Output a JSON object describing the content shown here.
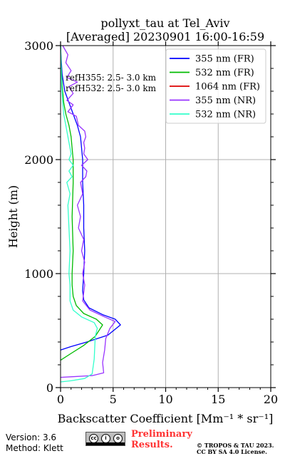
{
  "chart_data": {
    "type": "line",
    "title_line1": "pollyxt_tau at Tel_Aviv",
    "title_line2": "[Averaged] 20230901 16:00-16:59",
    "xlabel": "Backscatter Coefficient [Mm⁻¹ * sr⁻¹]",
    "ylabel": "Height (m)",
    "xlim": [
      0,
      20
    ],
    "ylim": [
      0,
      3000
    ],
    "xticks": [
      0,
      5,
      10,
      15,
      20
    ],
    "yticks": [
      0,
      1000,
      2000,
      3000
    ],
    "grid": true,
    "legend_placement": "top-right",
    "annotations": [
      "refH355:  2.5- 3.0 km",
      "refH532:  2.5- 3.0 km"
    ],
    "series": [
      {
        "name": "355 nm (FR)",
        "color": "#0000ff",
        "points": [
          [
            0,
            330
          ],
          [
            1.0,
            360
          ],
          [
            2.5,
            400
          ],
          [
            4.5,
            460
          ],
          [
            5.7,
            550
          ],
          [
            5.2,
            600
          ],
          [
            4.0,
            640
          ],
          [
            2.7,
            700
          ],
          [
            2.2,
            770
          ],
          [
            2.1,
            850
          ],
          [
            2.2,
            1000
          ],
          [
            2.3,
            1200
          ],
          [
            2.2,
            1400
          ],
          [
            2.2,
            1600
          ],
          [
            2.1,
            1800
          ],
          [
            2.1,
            2000
          ],
          [
            2.0,
            2100
          ],
          [
            1.9,
            2200
          ],
          [
            1.6,
            2300
          ],
          [
            1.2,
            2400
          ],
          [
            0.8,
            2500
          ],
          [
            0.4,
            2600
          ],
          [
            0.15,
            2750
          ],
          [
            0.05,
            2900
          ],
          [
            0.0,
            3000
          ]
        ]
      },
      {
        "name": "532 nm (FR)",
        "color": "#00bb00",
        "points": [
          [
            0,
            240
          ],
          [
            1.0,
            300
          ],
          [
            2.2,
            370
          ],
          [
            3.3,
            450
          ],
          [
            4.0,
            550
          ],
          [
            3.4,
            600
          ],
          [
            2.2,
            650
          ],
          [
            1.5,
            720
          ],
          [
            1.2,
            800
          ],
          [
            1.1,
            900
          ],
          [
            1.1,
            1000
          ],
          [
            1.2,
            1200
          ],
          [
            1.1,
            1500
          ],
          [
            1.2,
            1800
          ],
          [
            1.2,
            2000
          ],
          [
            1.1,
            2100
          ],
          [
            1.0,
            2200
          ],
          [
            0.8,
            2300
          ],
          [
            0.5,
            2400
          ],
          [
            0.3,
            2500
          ],
          [
            0.15,
            2650
          ],
          [
            0.05,
            2850
          ],
          [
            0.0,
            3000
          ]
        ]
      },
      {
        "name": "1064 nm (FR)",
        "color": "#dd0000",
        "points": []
      },
      {
        "name": "355 nm (NR)",
        "color": "#9933ff",
        "points": [
          [
            0,
            90
          ],
          [
            1.0,
            95
          ],
          [
            3.0,
            105
          ],
          [
            4.1,
            130
          ],
          [
            4.0,
            220
          ],
          [
            4.2,
            330
          ],
          [
            4.3,
            430
          ],
          [
            4.7,
            520
          ],
          [
            5.2,
            580
          ],
          [
            4.2,
            620
          ],
          [
            2.8,
            680
          ],
          [
            2.1,
            760
          ],
          [
            2.3,
            900
          ],
          [
            2.1,
            1000
          ],
          [
            2.3,
            1100
          ],
          [
            2.0,
            1200
          ],
          [
            2.2,
            1300
          ],
          [
            1.7,
            1400
          ],
          [
            1.9,
            1500
          ],
          [
            1.6,
            1600
          ],
          [
            2.1,
            1700
          ],
          [
            1.9,
            1800
          ],
          [
            2.4,
            1850
          ],
          [
            2.5,
            1900
          ],
          [
            2.0,
            1950
          ],
          [
            2.6,
            2000
          ],
          [
            2.2,
            2050
          ],
          [
            2.3,
            2100
          ],
          [
            2.2,
            2150
          ],
          [
            2.4,
            2200
          ],
          [
            2.3,
            2250
          ],
          [
            1.7,
            2300
          ],
          [
            1.5,
            2380
          ],
          [
            0.7,
            2420
          ],
          [
            1.2,
            2480
          ],
          [
            0.6,
            2520
          ],
          [
            1.2,
            2580
          ],
          [
            0.8,
            2640
          ],
          [
            1.6,
            2680
          ],
          [
            0.6,
            2720
          ],
          [
            1.0,
            2780
          ],
          [
            0.5,
            2850
          ],
          [
            0.7,
            2920
          ],
          [
            0.2,
            3000
          ]
        ]
      },
      {
        "name": "532 nm (NR)",
        "color": "#33ffcc",
        "points": [
          [
            0,
            50
          ],
          [
            1.0,
            60
          ],
          [
            2.3,
            80
          ],
          [
            3.0,
            120
          ],
          [
            3.2,
            250
          ],
          [
            3.3,
            450
          ],
          [
            3.5,
            520
          ],
          [
            3.2,
            570
          ],
          [
            2.0,
            620
          ],
          [
            1.2,
            680
          ],
          [
            0.9,
            760
          ],
          [
            0.9,
            900
          ],
          [
            0.8,
            1000
          ],
          [
            0.9,
            1200
          ],
          [
            0.8,
            1400
          ],
          [
            0.7,
            1600
          ],
          [
            0.9,
            1700
          ],
          [
            0.6,
            1800
          ],
          [
            1.1,
            1850
          ],
          [
            0.8,
            1900
          ],
          [
            1.2,
            1950
          ],
          [
            0.8,
            2000
          ],
          [
            1.0,
            2050
          ],
          [
            0.9,
            2100
          ],
          [
            0.8,
            2150
          ],
          [
            0.7,
            2200
          ],
          [
            0.5,
            2300
          ],
          [
            0.3,
            2400
          ],
          [
            0.2,
            2500
          ],
          [
            0.1,
            2650
          ],
          [
            0.05,
            2850
          ],
          [
            0.0,
            3000
          ]
        ]
      }
    ]
  },
  "footer": {
    "version": "Version: 3.6",
    "method": "Method: Klett",
    "preliminary_line1": "Preliminary",
    "preliminary_line2": "Results.",
    "copyright_line1": "© TROPOS & TAU 2023.",
    "copyright_line2": "CC BY SA 4.0 License.",
    "license_logo_icon": "cc-by-sa-icon"
  }
}
